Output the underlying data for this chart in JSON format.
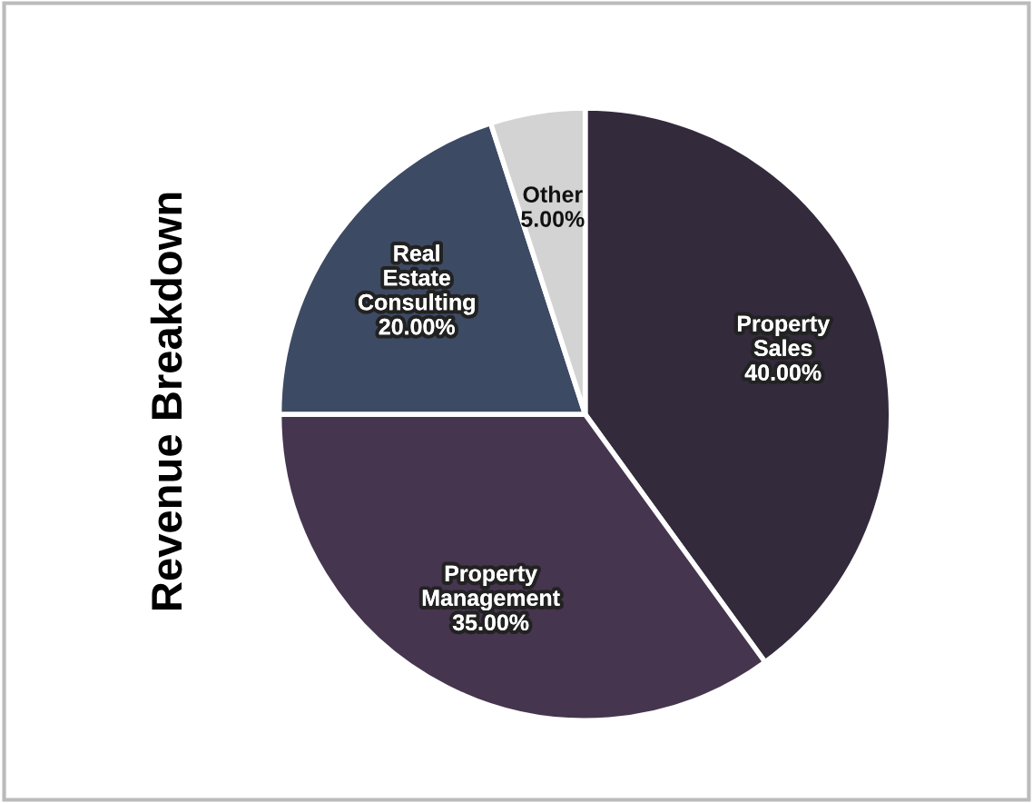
{
  "chart_data": {
    "type": "pie",
    "title": "Revenue Breakdown",
    "categories": [
      "Property Sales",
      "Property Management",
      "Real Estate Consulting",
      "Other"
    ],
    "values": [
      40,
      35,
      20,
      5
    ],
    "value_labels": [
      "40.00%",
      "35.00%",
      "20.00%",
      "5.00%"
    ],
    "colors": [
      "#332a3c",
      "#46354f",
      "#3d4a63",
      "#d3d3d3"
    ],
    "legend": false
  }
}
